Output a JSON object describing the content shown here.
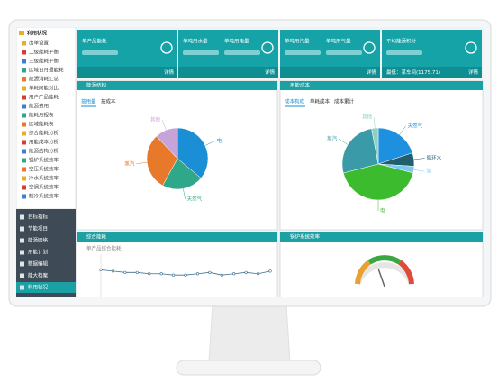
{
  "sidebar": {
    "title": "利用状况",
    "items": [
      "出单设置",
      "二级能耗平衡",
      "三级能耗平衡",
      "区域日月报能耗",
      "能源消耗汇总",
      "单耗同能对比",
      "用户产品能耗",
      "能源费用",
      "能耗月报表",
      "区域能耗表",
      "综合能耗分析",
      "用能成本分析",
      "能源结构分析",
      "锅炉系统效率",
      "空压系统效率",
      "冷水系统效率",
      "空调系统效率",
      "制冷系统效率"
    ],
    "menu": [
      "目标指标",
      "节能项目",
      "能源网络",
      "用能计划",
      "数据编辑",
      "能大档案",
      "利用状况"
    ]
  },
  "cards": [
    {
      "labels": [
        "单产品能耗"
      ],
      "link": "详情"
    },
    {
      "labels": [
        "单吨用水量",
        "单吨用电量"
      ],
      "link": "详情"
    },
    {
      "labels": [
        "单吨用汽量",
        "单吨用气量"
      ],
      "link": "详情"
    },
    {
      "labels": [
        "平均能源积分"
      ],
      "link": "详情",
      "note": "最低：某车间(1175.71)"
    }
  ],
  "panels": {
    "structure": {
      "title": "能源结构",
      "tabs": [
        "按用量",
        "按成本"
      ]
    },
    "cost": {
      "title": "用能成本",
      "tabs": [
        "成本构成",
        "单耗成本",
        "成本累计"
      ]
    },
    "trend": {
      "title": "综合能耗"
    },
    "boiler": {
      "title": "锅炉系统效率"
    }
  },
  "chart_data": [
    {
      "type": "pie",
      "categories": [
        "电",
        "天然气",
        "蒸汽",
        "其他"
      ],
      "values": [
        36,
        22,
        30,
        12
      ],
      "colors": [
        "#1a8fd6",
        "#2fa88a",
        "#e8782a",
        "#c6a4d8"
      ]
    },
    {
      "type": "pie",
      "categories": [
        "天然气",
        "循环水",
        "油",
        "电",
        "蒸汽",
        "其他"
      ],
      "values": [
        20,
        6,
        3,
        42,
        26,
        3
      ],
      "colors": [
        "#1e90e0",
        "#1f5f6e",
        "#7ec8ee",
        "#3dbb2e",
        "#3a9aa8",
        "#8fd0c0"
      ]
    },
    {
      "type": "line",
      "y_label": "单产品综合能耗",
      "categories": [
        null,
        null,
        null,
        null,
        null,
        null,
        null,
        null,
        null,
        null,
        null,
        null,
        null,
        null,
        null
      ],
      "series": [
        {
          "color": "#3b6f8f",
          "values": [
            88,
            87,
            86,
            86,
            85,
            85,
            84,
            84,
            85,
            86,
            84,
            85,
            86,
            85,
            87
          ]
        }
      ],
      "ylim": [
        60,
        100
      ]
    }
  ]
}
